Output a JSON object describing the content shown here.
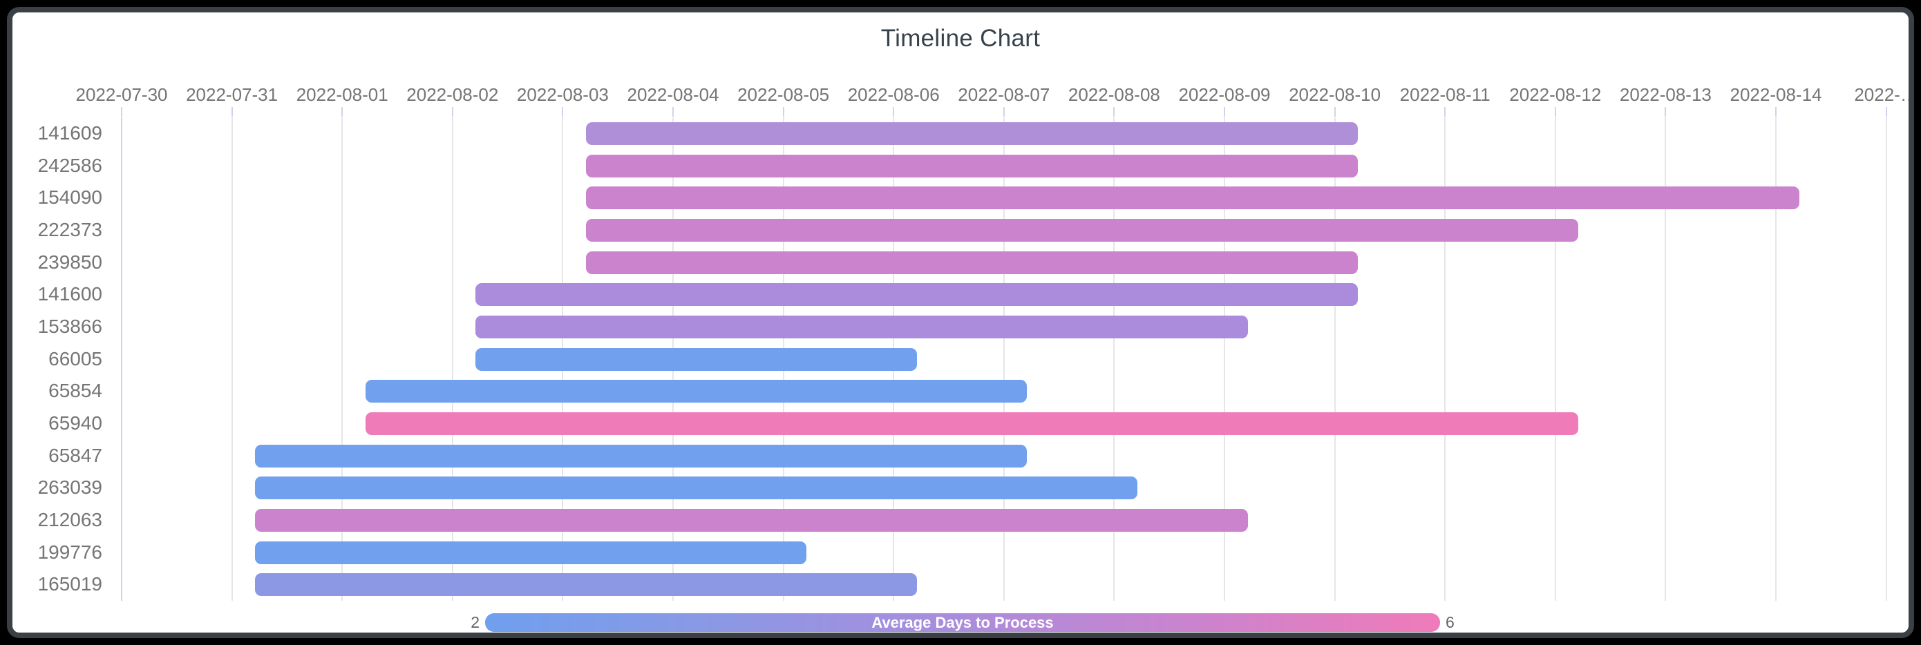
{
  "title": "Timeline Chart",
  "chart_data": {
    "type": "timeline",
    "title": "Timeline Chart",
    "x_axis": {
      "epoch": "2022-07-30",
      "tick_labels": [
        "2022-07-30",
        "2022-07-31",
        "2022-08-01",
        "2022-08-02",
        "2022-08-03",
        "2022-08-04",
        "2022-08-05",
        "2022-08-06",
        "2022-08-07",
        "2022-08-08",
        "2022-08-09",
        "2022-08-10",
        "2022-08-11",
        "2022-08-12",
        "2022-08-13",
        "2022-08-14",
        "2022-…"
      ]
    },
    "rows": [
      {
        "id": "141609",
        "start": "2022-08-03",
        "end": "2022-08-10",
        "color": "#ae8fd8"
      },
      {
        "id": "242586",
        "start": "2022-08-03",
        "end": "2022-08-10",
        "color": "#cc83cd"
      },
      {
        "id": "154090",
        "start": "2022-08-03",
        "end": "2022-08-14",
        "color": "#cc83cd"
      },
      {
        "id": "222373",
        "start": "2022-08-03",
        "end": "2022-08-12",
        "color": "#cc83cd"
      },
      {
        "id": "239850",
        "start": "2022-08-03",
        "end": "2022-08-10",
        "color": "#cc83cd"
      },
      {
        "id": "141600",
        "start": "2022-08-02",
        "end": "2022-08-10",
        "color": "#ab8cdc"
      },
      {
        "id": "153866",
        "start": "2022-08-02",
        "end": "2022-08-09",
        "color": "#ab8cdc"
      },
      {
        "id": "66005",
        "start": "2022-08-02",
        "end": "2022-08-06",
        "color": "#70a0ee"
      },
      {
        "id": "65854",
        "start": "2022-08-01",
        "end": "2022-08-07",
        "color": "#70a0ee"
      },
      {
        "id": "65940",
        "start": "2022-08-01",
        "end": "2022-08-12",
        "color": "#f07bb9"
      },
      {
        "id": "65847",
        "start": "2022-07-31",
        "end": "2022-08-07",
        "color": "#70a0ee"
      },
      {
        "id": "263039",
        "start": "2022-07-31",
        "end": "2022-08-08",
        "color": "#70a0ee"
      },
      {
        "id": "212063",
        "start": "2022-07-31",
        "end": "2022-08-09",
        "color": "#cc83cd"
      },
      {
        "id": "199776",
        "start": "2022-07-31",
        "end": "2022-08-05",
        "color": "#70a0ee"
      },
      {
        "id": "165019",
        "start": "2022-07-31",
        "end": "2022-08-06",
        "color": "#8c98e4"
      }
    ],
    "legend": {
      "label": "Average Days to Process",
      "min": "2",
      "max": "6",
      "gradient": [
        "#6f9fee",
        "#8c98e4",
        "#ab8cdc",
        "#cc83cd",
        "#f07bb9"
      ]
    }
  }
}
